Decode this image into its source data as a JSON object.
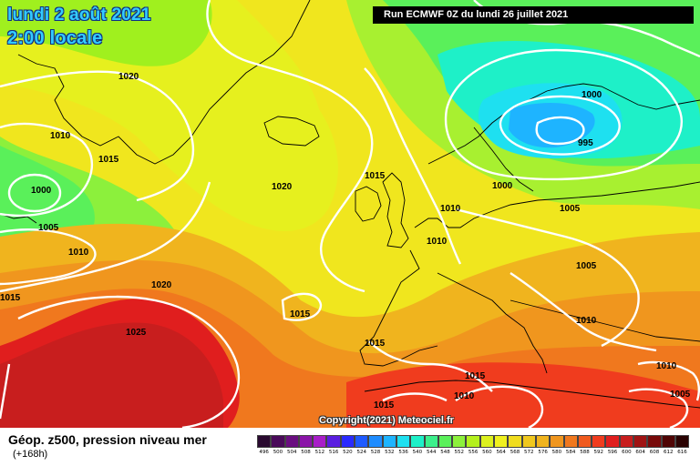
{
  "header": {
    "date": "lundi 2 août 2021",
    "time": "2:00 locale",
    "run": "Run ECMWF 0Z du lundi 26 juillet 2021"
  },
  "map": {
    "isobar_labels": [
      "1020",
      "1010",
      "1015",
      "1000",
      "1005",
      "1010",
      "1015",
      "1020",
      "1025",
      "1020",
      "1015",
      "1015",
      "1015",
      "1015",
      "1010",
      "1010",
      "1000",
      "995",
      "1000",
      "1010",
      "1005",
      "1005",
      "1010",
      "1010",
      "1005",
      "1015"
    ],
    "copyright": "Copyright(2021) Meteociel.fr"
  },
  "legend": {
    "title": "Géop. z500, pression niveau mer",
    "subtitle": "(+168h)",
    "levels": [
      "496",
      "500",
      "504",
      "508",
      "512",
      "516",
      "520",
      "524",
      "528",
      "532",
      "536",
      "540",
      "544",
      "548",
      "552",
      "556",
      "560",
      "564",
      "568",
      "572",
      "576",
      "580",
      "584",
      "588",
      "592",
      "596",
      "600",
      "604",
      "608",
      "612",
      "616"
    ],
    "colors": [
      "#2a0a30",
      "#4a0a5a",
      "#6a0e80",
      "#8a14a8",
      "#a81ec8",
      "#5a1ee0",
      "#2a2aff",
      "#1e5aff",
      "#1e8cff",
      "#1eb4ff",
      "#1ee0f0",
      "#1ef0c8",
      "#3cf08c",
      "#5af05a",
      "#8cf03c",
      "#b4f01e",
      "#dcf01e",
      "#f0f01e",
      "#f0dc1e",
      "#f0c81e",
      "#f0b41e",
      "#f0961e",
      "#f0781e",
      "#f05a1e",
      "#f03c1e",
      "#e01e1e",
      "#c81e1e",
      "#a01414",
      "#780a0a",
      "#500505",
      "#2a0202"
    ]
  }
}
